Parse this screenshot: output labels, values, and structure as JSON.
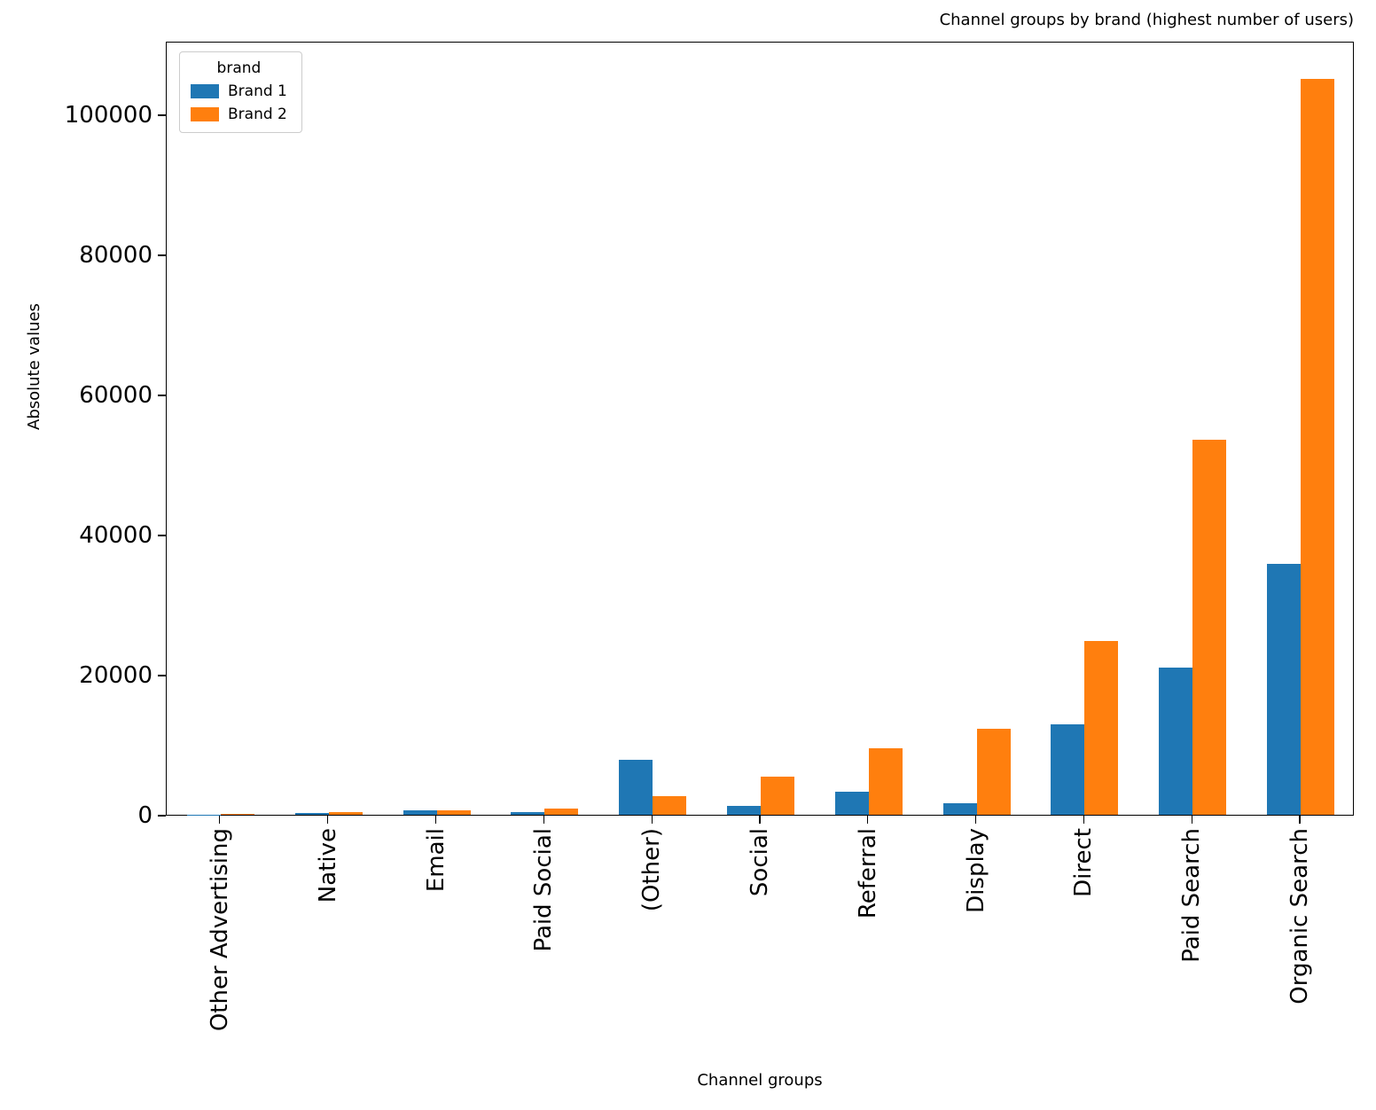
{
  "chart_data": {
    "type": "bar",
    "title": "Channel groups by brand (highest number of users)",
    "xlabel": "Channel groups",
    "ylabel": "Absolute values",
    "legend_title": "brand",
    "legend_position": "upper left",
    "grid": false,
    "categories": [
      "Other Advertising",
      "Native",
      "Email",
      "Paid Social",
      "(Other)",
      "Social",
      "Referral",
      "Display",
      "Direct",
      "Paid Search",
      "Organic Search"
    ],
    "series": [
      {
        "name": "Brand 1",
        "color": "#1f77b4",
        "values": [
          60,
          300,
          600,
          400,
          7800,
          1300,
          3300,
          1700,
          12900,
          21000,
          35800
        ]
      },
      {
        "name": "Brand 2",
        "color": "#ff7f0e",
        "values": [
          80,
          350,
          650,
          900,
          2600,
          5500,
          9500,
          12300,
          24800,
          53500,
          105000
        ]
      }
    ],
    "ylim": [
      0,
      110500
    ],
    "yticks": [
      0,
      20000,
      40000,
      60000,
      80000,
      100000
    ]
  }
}
